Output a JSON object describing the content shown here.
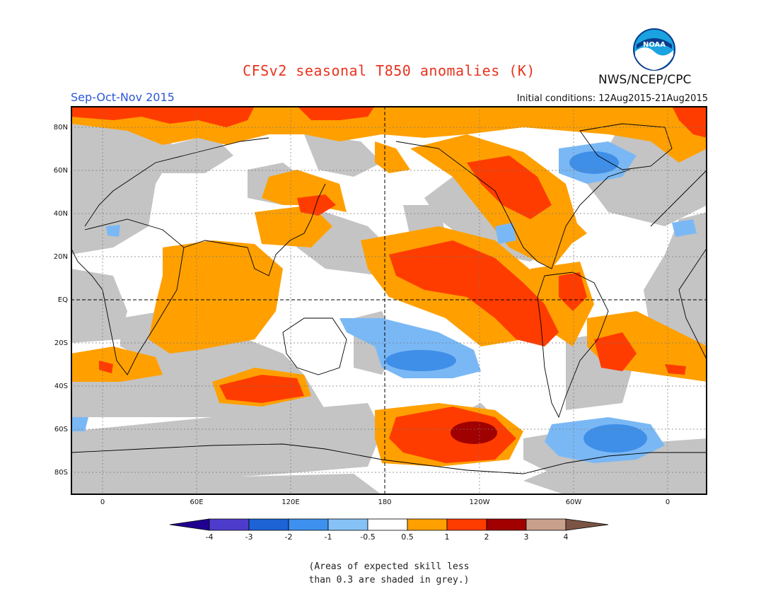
{
  "header": {
    "title": "CFSv2 seasonal T850 anomalies (K)",
    "agency": "NWS/NCEP/CPC",
    "season": "Sep-Oct-Nov 2015",
    "initial_conditions": "Initial conditions: 12Aug2015-21Aug2015"
  },
  "logo": {
    "text": "NOAA"
  },
  "map": {
    "lat_labels": [
      "80N",
      "60N",
      "40N",
      "20N",
      "EQ",
      "20S",
      "40S",
      "60S",
      "80S"
    ],
    "lon_labels": [
      "0",
      "60E",
      "120E",
      "180",
      "120W",
      "60W",
      "0"
    ],
    "colors": {
      "skill_grey": "#c4c4c4",
      "neutral": "#ffffff",
      "pos_0_5_1": "#ffa000",
      "pos_1_2": "#ff3c00",
      "pos_2_3": "#a00000",
      "neg_0_5_1": "#7ab8f5",
      "neg_1_2": "#3f8fe8"
    }
  },
  "colorbar": {
    "labels": [
      "-4",
      "-3",
      "-2",
      "-1",
      "-0.5",
      "0.5",
      "1",
      "2",
      "3",
      "4"
    ],
    "colors": [
      "#200090",
      "#4d3ccc",
      "#1e63d6",
      "#3e90ee",
      "#86c2f6",
      "#ffffff",
      "#ffa000",
      "#ff3c00",
      "#a00000",
      "#c9a08c",
      "#7b5444"
    ]
  },
  "footnote": {
    "line1": "(Areas of expected skill less",
    "line2": "than 0.3 are shaded in grey.)"
  }
}
